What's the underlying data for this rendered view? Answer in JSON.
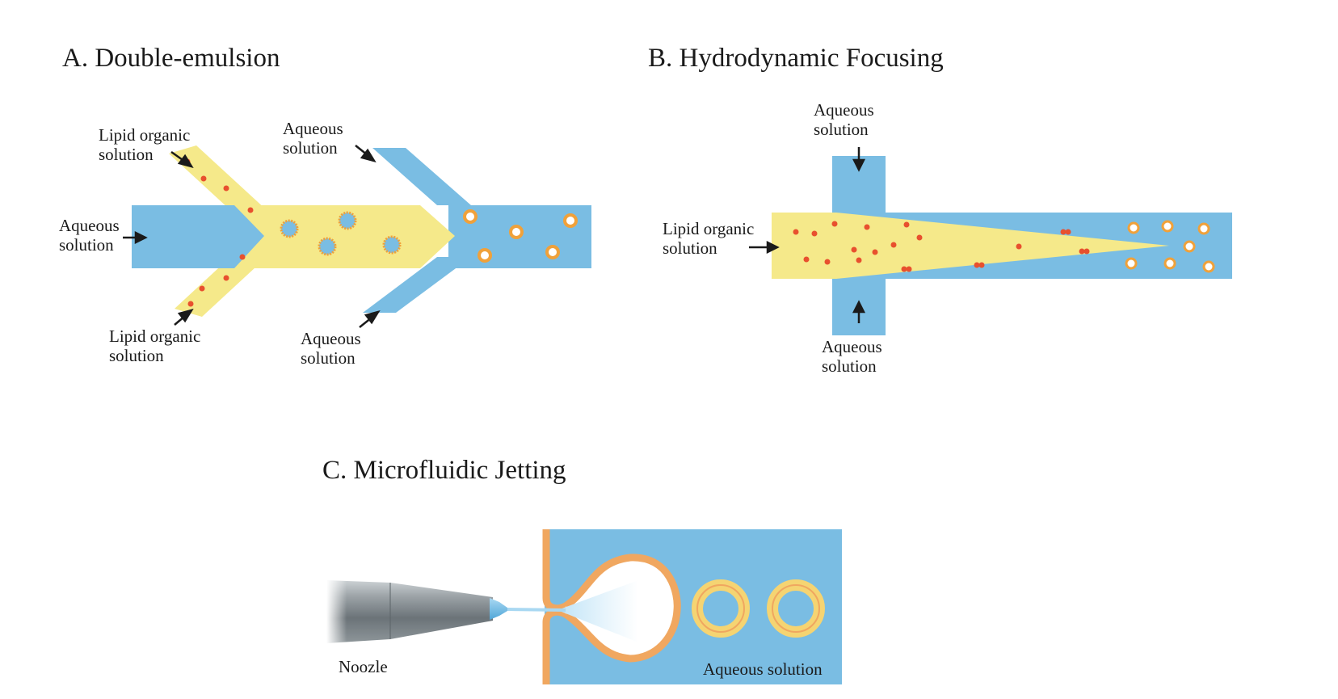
{
  "colors": {
    "aqueous": "#7ABDE3",
    "lipid": "#F5E98A",
    "lipid_head": "#E8502E",
    "lipid_tail": "#F0A13A",
    "membrane": "#F0A760",
    "nozzle_dark": "#6B7378",
    "nozzle_light": "#C9CED1"
  },
  "panel_a": {
    "title": "A. Double-emulsion",
    "label_lipid_top_1": "Lipid organic",
    "label_lipid_top_2": "solution",
    "label_aq_top_1": "Aqueous",
    "label_aq_top_2": "solution",
    "label_aq_left_1": "Aqueous",
    "label_aq_left_2": "solution",
    "label_lipid_bottom_1": "Lipid organic",
    "label_lipid_bottom_2": "solution",
    "label_aq_bottom_1": "Aqueous",
    "label_aq_bottom_2": "solution"
  },
  "panel_b": {
    "title": "B. Hydrodynamic Focusing",
    "label_aq_top_1": "Aqueous",
    "label_aq_top_2": "solution",
    "label_lipid_1": "Lipid organic",
    "label_lipid_2": "solution",
    "label_aq_bottom_1": "Aqueous",
    "label_aq_bottom_2": "solution"
  },
  "panel_c": {
    "title": "C. Microfluidic Jetting",
    "label_nozzle": "Noozle",
    "label_aq": "Aqueous solution"
  }
}
